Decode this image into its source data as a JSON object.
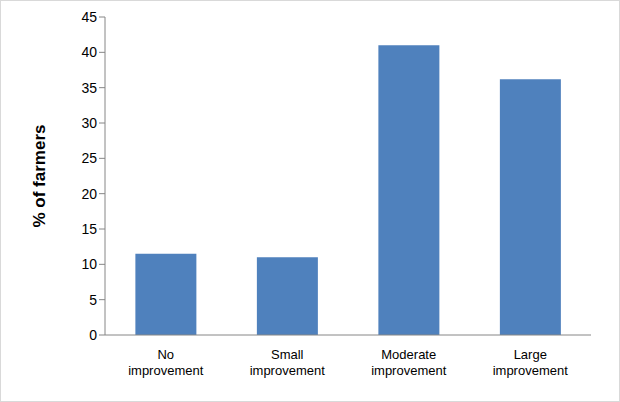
{
  "chart_data": {
    "type": "bar",
    "y_label": "% of farmers",
    "categories": [
      "No improvement",
      "Small improvement",
      "Moderate improvement",
      "Large improvement"
    ],
    "values": [
      11.5,
      11,
      41,
      36.2
    ],
    "color": "#4f81bd",
    "ylim": [
      0,
      45
    ],
    "yticks": [
      0,
      5,
      10,
      15,
      20,
      25,
      30,
      35,
      40,
      45
    ],
    "grid": false
  }
}
